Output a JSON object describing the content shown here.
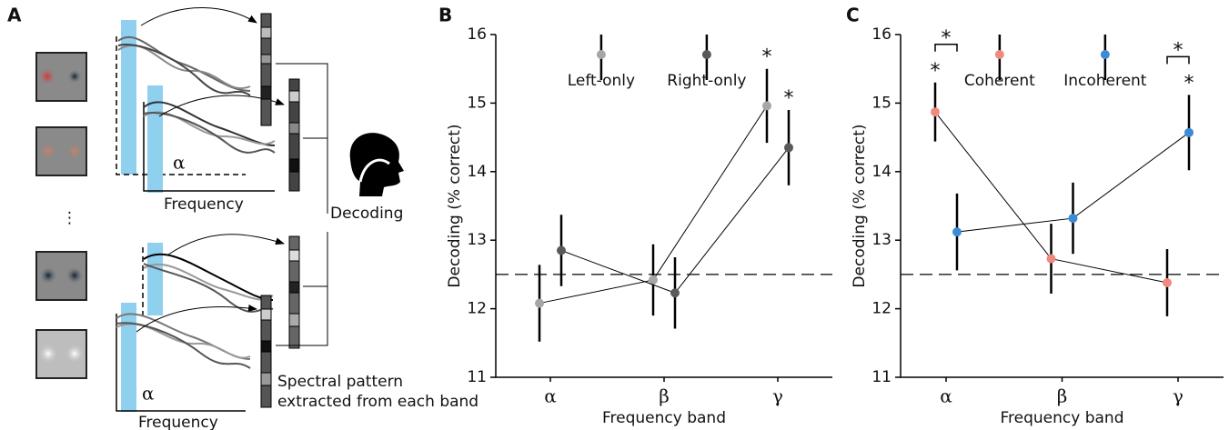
{
  "diagram": {
    "panel_label": "A",
    "alpha_labels": [
      "α",
      "α"
    ],
    "frequency_labels": [
      "Frequency",
      "Frequency"
    ],
    "ellipsis": "⋮",
    "decoding_label": "Decoding",
    "pattern_caption": [
      "Spectral pattern",
      "extracted from each band"
    ]
  },
  "chart_data": [
    {
      "type": "line",
      "panel_label": "B",
      "x_label": "Frequency band",
      "y_label": "Decoding (% correct)",
      "categories": [
        "α",
        "β",
        "γ"
      ],
      "ylim": [
        11,
        16
      ],
      "yticks": [
        11,
        12,
        13,
        14,
        15,
        16
      ],
      "reference_line": 12.5,
      "series": [
        {
          "name": "Left-only",
          "color": "#a6a6a6",
          "values": [
            12.08,
            12.42,
            14.96
          ],
          "errors": [
            0.56,
            0.52,
            0.54
          ],
          "marks": [
            null,
            null,
            "*"
          ]
        },
        {
          "name": "Right-only",
          "color": "#595959",
          "values": [
            12.85,
            12.23,
            14.35
          ],
          "errors": [
            0.52,
            0.52,
            0.55
          ],
          "marks": [
            null,
            null,
            "*"
          ]
        }
      ]
    },
    {
      "type": "line",
      "panel_label": "C",
      "x_label": "Frequency band",
      "y_label": "Decoding (% correct)",
      "categories": [
        "α",
        "β",
        "γ"
      ],
      "ylim": [
        11,
        16
      ],
      "yticks": [
        11,
        12,
        13,
        14,
        15,
        16
      ],
      "reference_line": 12.5,
      "pair_labels": [
        "*",
        null,
        "*"
      ],
      "series": [
        {
          "name": "Coherent",
          "color": "#f08a80",
          "values": [
            14.87,
            12.73,
            12.38
          ],
          "errors": [
            0.43,
            0.51,
            0.49
          ],
          "marks": [
            "*",
            null,
            null
          ]
        },
        {
          "name": "Incoherent",
          "color": "#3d8bd4",
          "values": [
            13.12,
            13.32,
            14.57
          ],
          "errors": [
            0.56,
            0.52,
            0.55
          ],
          "marks": [
            null,
            null,
            "*"
          ]
        }
      ]
    }
  ]
}
